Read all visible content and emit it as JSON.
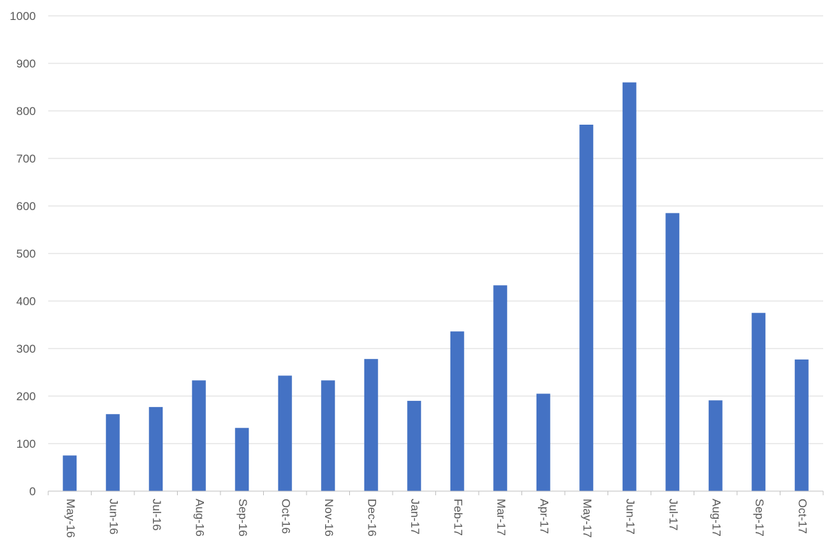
{
  "chart_data": {
    "type": "bar",
    "title": "",
    "xlabel": "",
    "ylabel": "",
    "categories": [
      "May-16",
      "Jun-16",
      "Jul-16",
      "Aug-16",
      "Sep-16",
      "Oct-16",
      "Nov-16",
      "Dec-16",
      "Jan-17",
      "Feb-17",
      "Mar-17",
      "Apr-17",
      "May-17",
      "Jun-17",
      "Jul-17",
      "Aug-17",
      "Sep-17",
      "Oct-17"
    ],
    "values": [
      75,
      162,
      177,
      233,
      133,
      243,
      233,
      278,
      190,
      336,
      433,
      205,
      771,
      860,
      585,
      191,
      375,
      277
    ],
    "ylim": [
      0,
      1000
    ],
    "yticks": [
      "0",
      "100",
      "200",
      "300",
      "400",
      "500",
      "600",
      "700",
      "800",
      "900",
      "1000"
    ],
    "ytick_values": [
      0,
      100,
      200,
      300,
      400,
      500,
      600,
      700,
      800,
      900,
      1000
    ],
    "grid": true,
    "legend": "none",
    "bar_color": "#4472C4"
  }
}
